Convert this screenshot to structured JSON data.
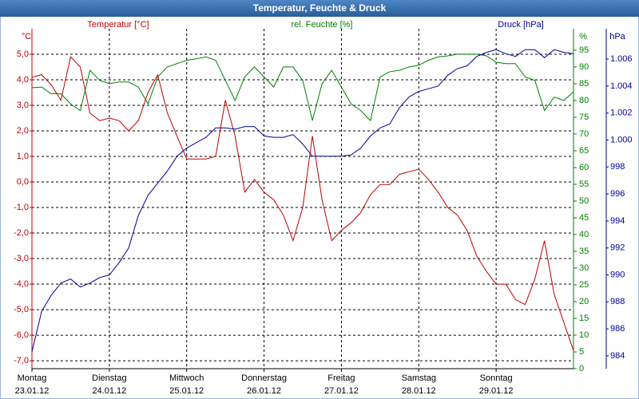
{
  "chart_data": {
    "type": "line",
    "title": "Temperatur, Feuchte & Druck",
    "y_label": "Temperatur [°C]",
    "y_unit": "°C",
    "y2_label": "rel. Feuchte [%]",
    "y2_unit": "%",
    "y3_label": "Druck [hPa]",
    "y3_unit": "hPa",
    "xlim": [
      0,
      7
    ],
    "xticks": [
      {
        "value": 0,
        "label": "Montag",
        "date": "23.01.12"
      },
      {
        "value": 1,
        "label": "Dienstag",
        "date": "24.01.12"
      },
      {
        "value": 2,
        "label": "Mittwoch",
        "date": "25.01.12"
      },
      {
        "value": 3,
        "label": "Donnerstag",
        "date": "26.01.12"
      },
      {
        "value": 4,
        "label": "Freitag",
        "date": "27.01.12"
      },
      {
        "value": 5,
        "label": "Samstag",
        "date": "28.01.12"
      },
      {
        "value": 6,
        "label": "Sonntag",
        "date": "29.01.12"
      }
    ],
    "ylim": [
      -7.31,
      6.0
    ],
    "yticks": [
      {
        "value": 5,
        "label": "5,0"
      },
      {
        "value": 4,
        "label": "4,0"
      },
      {
        "value": 3,
        "label": "3,0"
      },
      {
        "value": 2,
        "label": "2,0"
      },
      {
        "value": 1,
        "label": "1,0"
      },
      {
        "value": 0,
        "label": "0,0"
      },
      {
        "value": -1,
        "label": "-1,0"
      },
      {
        "value": -2,
        "label": "-2,0"
      },
      {
        "value": -3,
        "label": "-3,0"
      },
      {
        "value": -4,
        "label": "-4,0"
      },
      {
        "value": -5,
        "label": "-5,0"
      },
      {
        "value": -6,
        "label": "-6,0"
      },
      {
        "value": -7,
        "label": "-7,0"
      }
    ],
    "y2lim": [
      0,
      101.4
    ],
    "y2ticks": [
      0,
      5,
      10,
      15,
      20,
      25,
      30,
      35,
      40,
      45,
      50,
      55,
      60,
      65,
      70,
      75,
      80,
      85,
      90,
      95
    ],
    "y3lim": [
      983.05,
      1008.25
    ],
    "y3ticks": [
      984,
      986,
      988,
      990,
      992,
      994,
      996,
      998,
      {
        "value": 1000,
        "label": "1.000"
      },
      {
        "value": 1002,
        "label": "1.002"
      },
      {
        "value": 1004,
        "label": "1.004"
      },
      {
        "value": 1006,
        "label": "1.006"
      }
    ],
    "grid": true,
    "x": [
      0,
      0.125,
      0.25,
      0.375,
      0.5,
      0.625,
      0.75,
      0.875,
      1,
      1.125,
      1.25,
      1.375,
      1.5,
      1.625,
      1.75,
      1.875,
      2,
      2.125,
      2.25,
      2.375,
      2.5,
      2.625,
      2.75,
      2.875,
      3,
      3.125,
      3.25,
      3.375,
      3.5,
      3.625,
      3.75,
      3.875,
      4,
      4.125,
      4.25,
      4.375,
      4.5,
      4.625,
      4.75,
      4.875,
      5,
      5.125,
      5.25,
      5.375,
      5.5,
      5.625,
      5.75,
      5.875,
      6,
      6.125,
      6.25,
      6.375,
      6.5,
      6.625,
      6.75,
      6.875,
      7
    ],
    "series": [
      {
        "name": "Temperatur",
        "color": "#c00000",
        "axis": "y",
        "values": [
          4.1,
          4.2,
          3.8,
          3.2,
          4.9,
          4.5,
          2.7,
          2.4,
          2.5,
          2.4,
          2.0,
          2.4,
          3.5,
          4.2,
          2.7,
          1.8,
          0.9,
          0.9,
          0.9,
          1.0,
          3.2,
          1.8,
          -0.4,
          0.1,
          -0.4,
          -0.7,
          -1.3,
          -2.3,
          -1.0,
          1.8,
          -0.7,
          -2.3,
          -1.9,
          -1.6,
          -1.2,
          -0.5,
          -0.1,
          -0.1,
          0.3,
          0.4,
          0.5,
          0.1,
          -0.4,
          -1.0,
          -1.3,
          -1.9,
          -2.9,
          -3.5,
          -4.0,
          -4.0,
          -4.6,
          -4.8,
          -3.8,
          -2.3,
          -4.4,
          -5.5,
          -6.6
        ]
      },
      {
        "name": "rel. Feuchte",
        "color": "#008000",
        "axis": "y2",
        "values": [
          83.8,
          84,
          82,
          82,
          79,
          77,
          89,
          86,
          85,
          85.5,
          85.5,
          84,
          79,
          87,
          90,
          91,
          92,
          92.4,
          93,
          92,
          86,
          80,
          87,
          90,
          87,
          84,
          90,
          90,
          86,
          74,
          85,
          89,
          84,
          79,
          77,
          74,
          87,
          88.6,
          89,
          90,
          90.5,
          92,
          93,
          93.3,
          93.8,
          93.8,
          93.8,
          93.3,
          91.4,
          91,
          91,
          87,
          86,
          77,
          81,
          80,
          82.6
        ]
      },
      {
        "name": "Druck",
        "color": "#000099",
        "axis": "y3",
        "values": [
          984.3,
          987.3,
          988.5,
          989.4,
          989.7,
          989.1,
          989.4,
          989.8,
          990.0,
          990.9,
          992.0,
          994.4,
          995.9,
          996.8,
          997.7,
          998.8,
          999.4,
          999.8,
          1000.2,
          1000.9,
          1000.9,
          1000.8,
          1001.0,
          1001.0,
          1000.3,
          1000.2,
          1000.2,
          1000.4,
          999.7,
          998.8,
          998.8,
          998.8,
          998.8,
          998.9,
          999.4,
          1000.3,
          1000.9,
          1001.2,
          1002.4,
          1003.2,
          1003.6,
          1003.8,
          1004.0,
          1004.8,
          1005.3,
          1005.5,
          1006.2,
          1006.5,
          1006.7,
          1006.4,
          1006.2,
          1006.7,
          1006.7,
          1006.1,
          1006.7,
          1006.5,
          1006.4
        ]
      }
    ]
  }
}
